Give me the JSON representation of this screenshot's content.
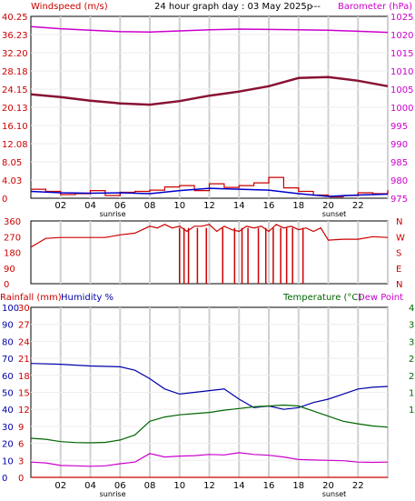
{
  "header": {
    "windspeed_label": "Windspeed (m/s)",
    "title": "24 hour graph day : 03 May 2025p",
    "dashes": "---",
    "barometer_label": "Barometer (hPa)",
    "rainfall_label": "Rainfall (mm)",
    "humidity_label": "Humidity %",
    "temperature_label": "Temperature (°C)",
    "dewpoint_label": "Dew Point"
  },
  "colors": {
    "wind": "#cc0000",
    "wind_avg": "#0000cc",
    "barometer": "#cc00cc",
    "pressure_line": "#881133",
    "humidity": "#0000aa",
    "temperature": "#006600",
    "dewpoint": "#cc00cc",
    "rain": "#cc0000",
    "grid": "#d0d0d0",
    "night": "#ffffff"
  },
  "chart_data": [
    {
      "type": "line",
      "panel": "wind-barometer",
      "x_ticks": [
        "02",
        "04",
        "06",
        "08",
        "10",
        "12",
        "14",
        "16",
        "18",
        "20",
        "22",
        ""
      ],
      "x_markers": {
        "sunrise": "sunrise",
        "sunset": "sunset"
      },
      "left_axis": {
        "label": "Windspeed (m/s)",
        "ylim": [
          0,
          40.25
        ],
        "ticks": [
          "40.25",
          "36.23",
          "32.20",
          "28.18",
          "24.15",
          "20.13",
          "16.10",
          "12.08",
          "8.05",
          "4.03",
          "0"
        ]
      },
      "right_axis": {
        "label": "Barometer (hPa)",
        "ylim": [
          975,
          1025
        ],
        "ticks": [
          "1025",
          "1020",
          "1015",
          "1010",
          "1005",
          "1000",
          "995",
          "990",
          "985",
          "980",
          "975"
        ]
      },
      "series": [
        {
          "name": "Barometer (hPa)",
          "axis": "right",
          "x": [
            0,
            2,
            4,
            6,
            8,
            10,
            12,
            14,
            16,
            18,
            20,
            22,
            24
          ],
          "values": [
            1022.2,
            1021.6,
            1021.2,
            1020.8,
            1020.7,
            1021.0,
            1021.3,
            1021.5,
            1021.4,
            1021.3,
            1021.2,
            1020.9,
            1020.6
          ]
        },
        {
          "name": "pressure-trend",
          "axis": "left",
          "x": [
            0,
            2,
            4,
            6,
            8,
            10,
            12,
            14,
            16,
            18,
            20,
            22,
            24
          ],
          "values": [
            23.0,
            22.4,
            21.6,
            21.0,
            20.7,
            21.5,
            22.7,
            23.6,
            24.8,
            26.6,
            26.8,
            26.0,
            24.8
          ]
        },
        {
          "name": "wind-avg",
          "axis": "left",
          "x": [
            0,
            2,
            4,
            6,
            8,
            10,
            12,
            14,
            16,
            18,
            20,
            22,
            24
          ],
          "values": [
            1.5,
            1.2,
            1.1,
            1.2,
            1.0,
            1.7,
            2.2,
            2.0,
            1.8,
            1.0,
            0.4,
            0.7,
            0.9
          ]
        },
        {
          "name": "wind-gust",
          "axis": "left",
          "x": [
            0,
            1,
            2,
            3,
            4,
            5,
            6,
            7,
            8,
            9,
            10,
            11,
            12,
            13,
            14,
            15,
            16,
            17,
            18,
            19,
            20,
            21,
            22,
            23,
            24
          ],
          "values": [
            2.0,
            1.5,
            0.8,
            1.0,
            1.7,
            0.6,
            1.3,
            1.5,
            1.8,
            2.5,
            2.8,
            1.7,
            3.2,
            2.4,
            2.8,
            3.4,
            4.6,
            2.3,
            1.5,
            0.7,
            0.3,
            0.6,
            1.2,
            1.0,
            1.8
          ]
        }
      ]
    },
    {
      "type": "line",
      "panel": "wind-direction",
      "left_axis": {
        "ylim": [
          0,
          360
        ],
        "ticks": [
          "360",
          "270",
          "180",
          "90",
          "0"
        ]
      },
      "right_axis": {
        "ticks": [
          "N",
          "W",
          "S",
          "E",
          "N"
        ]
      },
      "series": [
        {
          "name": "wind-direction",
          "x": [
            0,
            0.5,
            1,
            2,
            3,
            4,
            5,
            6,
            7,
            8,
            8.5,
            9,
            9.5,
            10,
            10.5,
            11,
            11.5,
            12,
            12.5,
            13,
            13.5,
            14,
            14.5,
            15,
            15.5,
            16,
            16.5,
            17,
            17.5,
            18,
            18.5,
            19,
            19.5,
            20,
            21,
            22,
            23,
            24
          ],
          "values": [
            210,
            235,
            260,
            265,
            265,
            265,
            265,
            280,
            290,
            330,
            320,
            340,
            320,
            330,
            300,
            330,
            330,
            340,
            300,
            330,
            310,
            300,
            330,
            320,
            330,
            300,
            340,
            320,
            330,
            310,
            320,
            300,
            320,
            250,
            255,
            255,
            270,
            265
          ],
          "spikes_to_zero_x": [
            10,
            10.3,
            10.6,
            11.2,
            11.8,
            12.9,
            13.7,
            14.2,
            14.6,
            15.3,
            15.8,
            16.3,
            16.8,
            17.2,
            17.6,
            18.3
          ]
        }
      ]
    },
    {
      "type": "line",
      "panel": "rain-humidity-temperature",
      "x_ticks": [
        "02",
        "04",
        "06",
        "08",
        "10",
        "12",
        "14",
        "16",
        "18",
        "20",
        "22",
        ""
      ],
      "x_markers": {
        "sunrise": "sunrise",
        "sunset": "sunset"
      },
      "left_axis_humidity": {
        "label": "Humidity %",
        "ylim": [
          0,
          100
        ],
        "ticks": [
          "100",
          "90",
          "80",
          "70",
          "60",
          "50",
          "40",
          "30",
          "20",
          "10",
          "0"
        ]
      },
      "left_axis_rain": {
        "label": "Rainfall (mm)",
        "ylim": [
          0,
          30
        ],
        "ticks": [
          "30",
          "27",
          "24",
          "21",
          "18",
          "15",
          "12",
          "9",
          "6",
          "3",
          "0"
        ]
      },
      "right_axis_temperature": {
        "label": "Temperature (°C)",
        "ylim": [
          -10,
          40
        ],
        "ticks": [
          "4",
          "3",
          "3",
          "2",
          "2",
          "1",
          "1",
          "",
          "",
          "",
          ""
        ]
      },
      "series": [
        {
          "name": "Humidity %",
          "axis": "humidity",
          "x": [
            0,
            2,
            4,
            6,
            7,
            8,
            9,
            10,
            12,
            13,
            14,
            15,
            16,
            17,
            18,
            19,
            20,
            21,
            22,
            23,
            24
          ],
          "values": [
            67,
            66.5,
            65.5,
            65,
            63,
            58,
            52,
            49,
            51,
            52,
            46,
            41,
            42,
            40,
            41,
            44,
            46,
            49,
            52,
            53,
            53.5
          ]
        },
        {
          "name": "Temperature (°C)",
          "axis": "humidity",
          "x": [
            0,
            1,
            2,
            3,
            4,
            5,
            6,
            7,
            8,
            9,
            10,
            11,
            12,
            13,
            14,
            15,
            16,
            17,
            18,
            19,
            20,
            21,
            22,
            23,
            24
          ],
          "values": [
            23,
            22.4,
            21,
            20.5,
            20.3,
            20.6,
            22,
            25,
            33,
            35.5,
            36.8,
            37.5,
            38.2,
            39.5,
            40.5,
            41.5,
            42,
            42.5,
            42,
            39,
            36,
            33,
            31.5,
            30.2,
            29.5
          ]
        },
        {
          "name": "Dew Point",
          "axis": "humidity",
          "x": [
            0,
            1,
            2,
            3,
            4,
            5,
            6,
            7,
            8,
            9,
            10,
            11,
            12,
            13,
            14,
            15,
            16,
            17,
            18,
            19,
            20,
            21,
            22,
            23,
            24
          ],
          "values": [
            9,
            8.5,
            7,
            6.8,
            6.5,
            6.8,
            8,
            9,
            14,
            12,
            12.5,
            12.8,
            13.5,
            13.2,
            14.5,
            13.5,
            13,
            12,
            10.5,
            10.2,
            10,
            9.8,
            9,
            8.8,
            9
          ]
        },
        {
          "name": "Rainfall (mm)",
          "axis": "rain",
          "x": [
            0,
            24
          ],
          "values": [
            0,
            0
          ]
        }
      ]
    }
  ]
}
